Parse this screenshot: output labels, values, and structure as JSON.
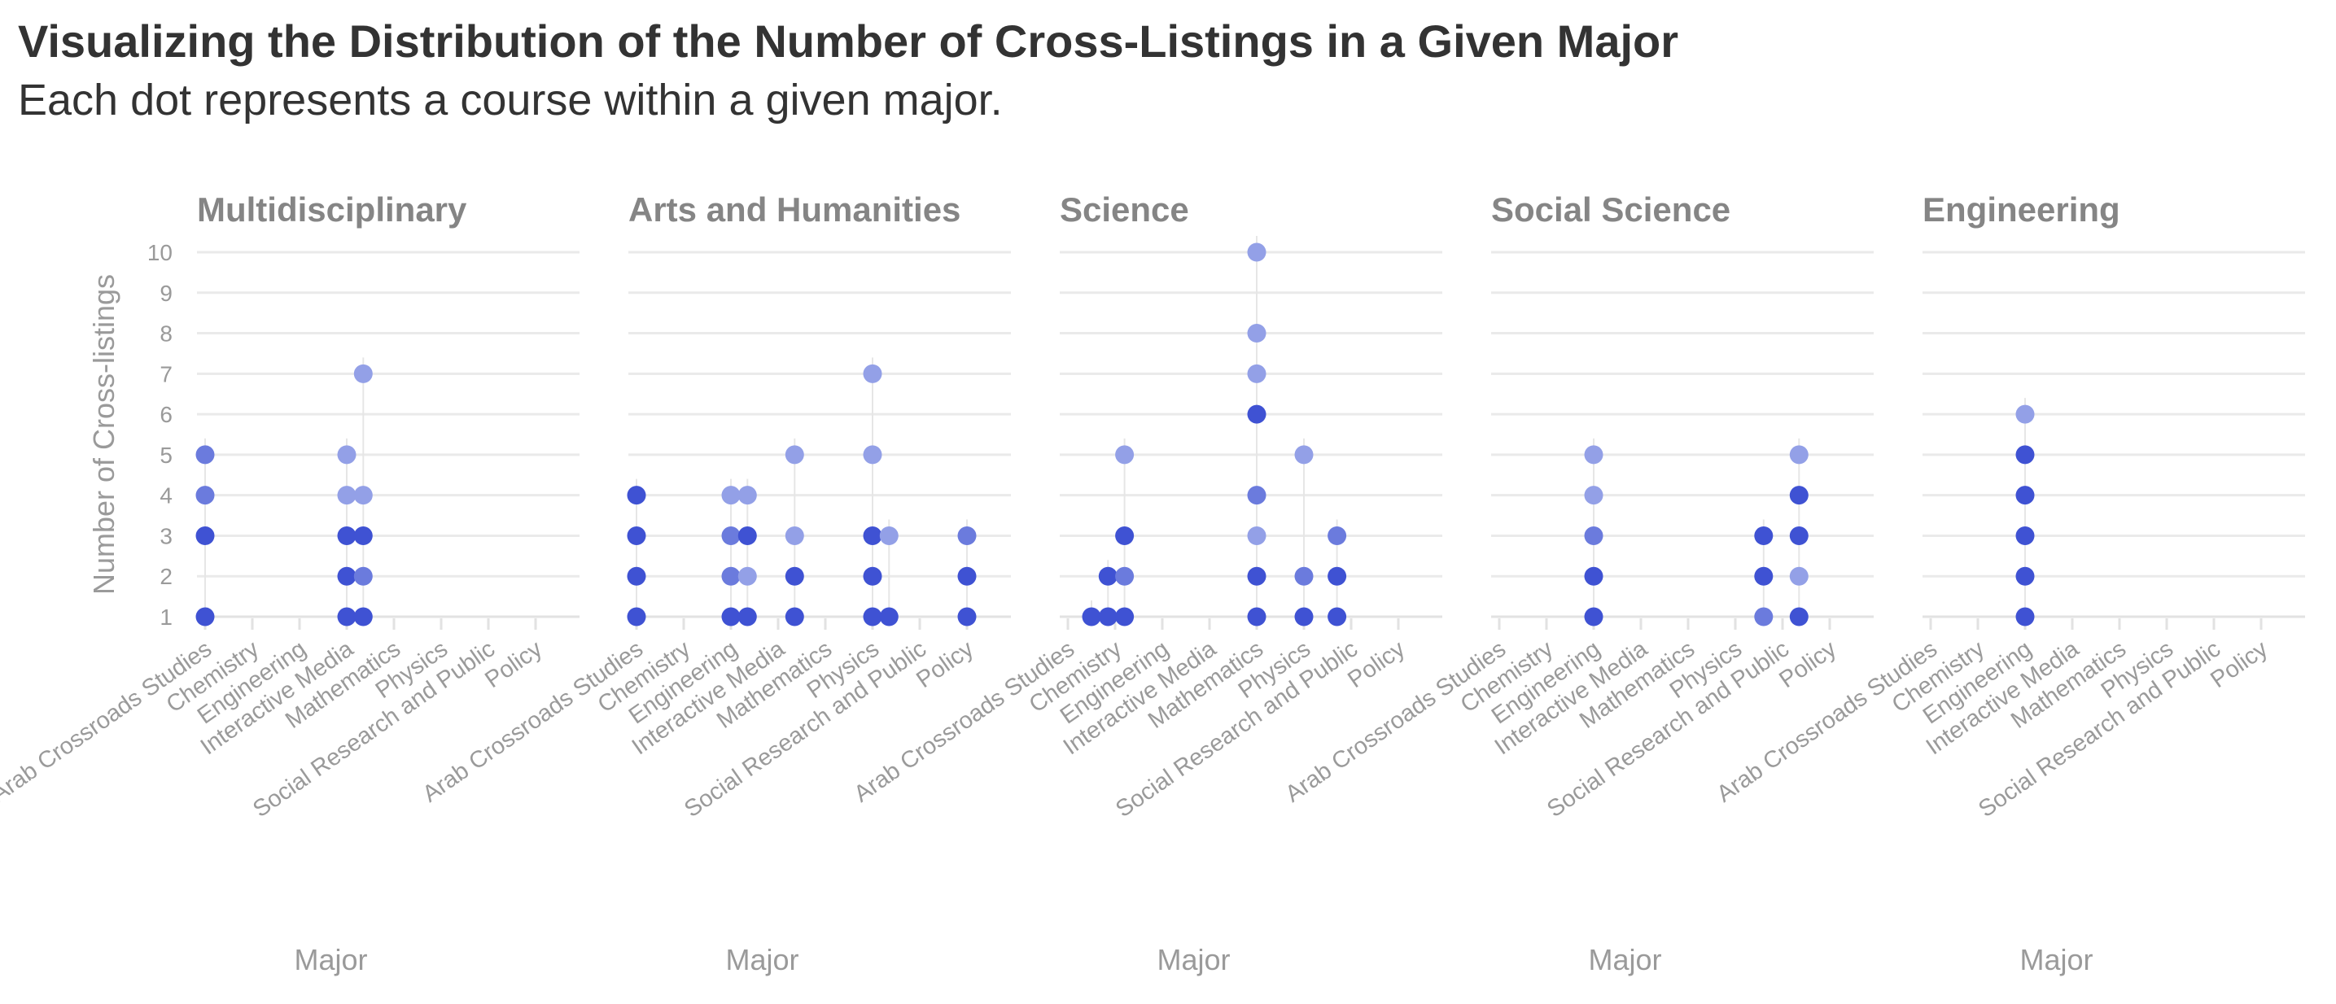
{
  "title": "Visualizing the Distribution of the Number of Cross-Listings in a Given Major",
  "subtitle": "Each dot represents a course within a given major.",
  "chart_data": {
    "type": "scatter",
    "ylabel": "Number of Cross-listings",
    "xlabel": "Major",
    "ylim": [
      1,
      10
    ],
    "yticks": [
      1,
      2,
      3,
      4,
      5,
      6,
      7,
      8,
      9,
      10
    ],
    "grid": true,
    "x_ticks": [
      "Arab Crossroads Studies",
      "Chemistry",
      "Engineering",
      "Interactive Media",
      "Mathematics",
      "Physics",
      "Social Research and Public",
      "Policy"
    ],
    "dot_colors": {
      "dark": "#3f52d3",
      "medium": "#6b7bdd",
      "light": "#93a0e7"
    },
    "panels": [
      {
        "title": "Multidisciplinary",
        "xlabel": "Major",
        "points": [
          {
            "x": 0.0,
            "y": 1,
            "c": "dark"
          },
          {
            "x": 0.0,
            "y": 3,
            "c": "dark"
          },
          {
            "x": 0.0,
            "y": 4,
            "c": "medium"
          },
          {
            "x": 0.0,
            "y": 5,
            "c": "medium"
          },
          {
            "x": 3.0,
            "y": 1,
            "c": "dark"
          },
          {
            "x": 3.0,
            "y": 2,
            "c": "dark"
          },
          {
            "x": 3.0,
            "y": 3,
            "c": "dark"
          },
          {
            "x": 3.0,
            "y": 4,
            "c": "light"
          },
          {
            "x": 3.0,
            "y": 5,
            "c": "light"
          },
          {
            "x": 3.35,
            "y": 1,
            "c": "dark"
          },
          {
            "x": 3.35,
            "y": 2,
            "c": "medium"
          },
          {
            "x": 3.35,
            "y": 3,
            "c": "dark"
          },
          {
            "x": 3.35,
            "y": 4,
            "c": "light"
          },
          {
            "x": 3.35,
            "y": 7,
            "c": "light"
          }
        ]
      },
      {
        "title": "Arts and Humanities",
        "xlabel": "Major",
        "points": [
          {
            "x": 0.0,
            "y": 1,
            "c": "dark"
          },
          {
            "x": 0.0,
            "y": 2,
            "c": "dark"
          },
          {
            "x": 0.0,
            "y": 3,
            "c": "dark"
          },
          {
            "x": 0.0,
            "y": 4,
            "c": "dark"
          },
          {
            "x": 2.0,
            "y": 1,
            "c": "dark"
          },
          {
            "x": 2.0,
            "y": 2,
            "c": "medium"
          },
          {
            "x": 2.0,
            "y": 3,
            "c": "medium"
          },
          {
            "x": 2.0,
            "y": 4,
            "c": "light"
          },
          {
            "x": 2.35,
            "y": 1,
            "c": "dark"
          },
          {
            "x": 2.35,
            "y": 2,
            "c": "light"
          },
          {
            "x": 2.35,
            "y": 3,
            "c": "dark"
          },
          {
            "x": 2.35,
            "y": 4,
            "c": "light"
          },
          {
            "x": 3.35,
            "y": 1,
            "c": "dark"
          },
          {
            "x": 3.35,
            "y": 2,
            "c": "dark"
          },
          {
            "x": 3.35,
            "y": 3,
            "c": "light"
          },
          {
            "x": 3.35,
            "y": 5,
            "c": "light"
          },
          {
            "x": 5.0,
            "y": 1,
            "c": "dark"
          },
          {
            "x": 5.0,
            "y": 2,
            "c": "dark"
          },
          {
            "x": 5.0,
            "y": 3,
            "c": "dark"
          },
          {
            "x": 5.0,
            "y": 5,
            "c": "light"
          },
          {
            "x": 5.0,
            "y": 7,
            "c": "light"
          },
          {
            "x": 5.35,
            "y": 1,
            "c": "dark"
          },
          {
            "x": 5.35,
            "y": 3,
            "c": "light"
          },
          {
            "x": 7.0,
            "y": 1,
            "c": "dark"
          },
          {
            "x": 7.0,
            "y": 2,
            "c": "dark"
          },
          {
            "x": 7.0,
            "y": 3,
            "c": "medium"
          }
        ]
      },
      {
        "title": "Science",
        "xlabel": "Major",
        "points": [
          {
            "x": 0.5,
            "y": 1,
            "c": "dark"
          },
          {
            "x": 0.85,
            "y": 1,
            "c": "dark"
          },
          {
            "x": 0.85,
            "y": 2,
            "c": "dark"
          },
          {
            "x": 1.2,
            "y": 1,
            "c": "dark"
          },
          {
            "x": 1.2,
            "y": 2,
            "c": "medium"
          },
          {
            "x": 1.2,
            "y": 3,
            "c": "dark"
          },
          {
            "x": 1.2,
            "y": 5,
            "c": "light"
          },
          {
            "x": 4.0,
            "y": 1,
            "c": "dark"
          },
          {
            "x": 4.0,
            "y": 2,
            "c": "dark"
          },
          {
            "x": 4.0,
            "y": 3,
            "c": "light"
          },
          {
            "x": 4.0,
            "y": 4,
            "c": "medium"
          },
          {
            "x": 4.0,
            "y": 6,
            "c": "dark"
          },
          {
            "x": 4.0,
            "y": 7,
            "c": "light"
          },
          {
            "x": 4.0,
            "y": 8,
            "c": "light"
          },
          {
            "x": 4.0,
            "y": 10,
            "c": "light"
          },
          {
            "x": 5.0,
            "y": 1,
            "c": "dark"
          },
          {
            "x": 5.0,
            "y": 2,
            "c": "medium"
          },
          {
            "x": 5.0,
            "y": 5,
            "c": "light"
          },
          {
            "x": 5.7,
            "y": 1,
            "c": "dark"
          },
          {
            "x": 5.7,
            "y": 2,
            "c": "dark"
          },
          {
            "x": 5.7,
            "y": 3,
            "c": "medium"
          }
        ]
      },
      {
        "title": "Social Science",
        "xlabel": "Major",
        "points": [
          {
            "x": 2.0,
            "y": 1,
            "c": "dark"
          },
          {
            "x": 2.0,
            "y": 2,
            "c": "dark"
          },
          {
            "x": 2.0,
            "y": 3,
            "c": "medium"
          },
          {
            "x": 2.0,
            "y": 4,
            "c": "light"
          },
          {
            "x": 2.0,
            "y": 5,
            "c": "light"
          },
          {
            "x": 5.6,
            "y": 1,
            "c": "medium"
          },
          {
            "x": 5.6,
            "y": 2,
            "c": "dark"
          },
          {
            "x": 5.6,
            "y": 3,
            "c": "dark"
          },
          {
            "x": 6.35,
            "y": 1,
            "c": "dark"
          },
          {
            "x": 6.35,
            "y": 2,
            "c": "light"
          },
          {
            "x": 6.35,
            "y": 3,
            "c": "dark"
          },
          {
            "x": 6.35,
            "y": 4,
            "c": "dark"
          },
          {
            "x": 6.35,
            "y": 5,
            "c": "light"
          }
        ]
      },
      {
        "title": "Engineering",
        "xlabel": "Major",
        "points": [
          {
            "x": 2.0,
            "y": 1,
            "c": "dark"
          },
          {
            "x": 2.0,
            "y": 2,
            "c": "dark"
          },
          {
            "x": 2.0,
            "y": 3,
            "c": "dark"
          },
          {
            "x": 2.0,
            "y": 4,
            "c": "dark"
          },
          {
            "x": 2.0,
            "y": 5,
            "c": "dark"
          },
          {
            "x": 2.0,
            "y": 6,
            "c": "light"
          }
        ]
      }
    ]
  }
}
